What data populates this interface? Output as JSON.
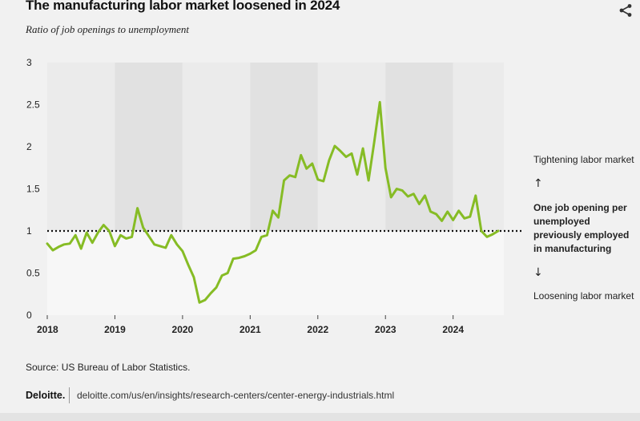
{
  "header": {
    "title": "The manufacturing labor market loosened in 2024",
    "subtitle": "Ratio of job openings to unemployment",
    "share_icon": "share-icon"
  },
  "annotations": {
    "tightening": "Tightening labor market",
    "up_arrow": "↑",
    "reference": "One job opening per unemployed previously employed in manufacturing",
    "down_arrow": "↓",
    "loosening": "Loosening labor market"
  },
  "footer": {
    "source": "Source: US Bureau of Labor Statistics.",
    "brand": "Deloitte.",
    "url": "deloitte.com/us/en/insights/research-centers/center-energy-industrials.html"
  },
  "colors": {
    "line": "#86bc25",
    "band_dark": "#e1e1e1",
    "band_light": "#ebebeb",
    "below_area": "#f7f7f7",
    "reference_line": "#111111"
  },
  "chart_data": {
    "type": "line",
    "title": "The manufacturing labor market loosened in 2024",
    "subtitle": "Ratio of job openings to unemployment",
    "xlabel": "",
    "ylabel": "",
    "ylim": [
      0,
      3
    ],
    "yticks": [
      0,
      0.5,
      1,
      1.5,
      2,
      2.5,
      3
    ],
    "ytick_labels": [
      "0",
      "0.5",
      "1",
      "1.5",
      "2",
      "2.5",
      "3"
    ],
    "xlim": [
      2018,
      2024.75
    ],
    "xticks": [
      2018,
      2019,
      2020,
      2021,
      2022,
      2023,
      2024
    ],
    "xtick_labels": [
      "2018",
      "2019",
      "2020",
      "2021",
      "2022",
      "2023",
      "2024"
    ],
    "reference_line": 1,
    "grid": false,
    "legend": "none",
    "series": [
      {
        "x": [
          2018.0,
          2018.083,
          2018.167,
          2018.25,
          2018.333,
          2018.417,
          2018.5,
          2018.583,
          2018.667,
          2018.75,
          2018.833,
          2018.917,
          2019.0,
          2019.083,
          2019.167,
          2019.25,
          2019.333,
          2019.417,
          2019.5,
          2019.583,
          2019.667,
          2019.75,
          2019.833,
          2019.917,
          2020.0,
          2020.083,
          2020.167,
          2020.25,
          2020.333,
          2020.417,
          2020.5,
          2020.583,
          2020.667,
          2020.75,
          2020.833,
          2020.917,
          2021.0,
          2021.083,
          2021.167,
          2021.25,
          2021.333,
          2021.417,
          2021.5,
          2021.583,
          2021.667,
          2021.75,
          2021.833,
          2021.917,
          2022.0,
          2022.083,
          2022.167,
          2022.25,
          2022.333,
          2022.417,
          2022.5,
          2022.583,
          2022.667,
          2022.75,
          2022.833,
          2022.917,
          2023.0,
          2023.083,
          2023.167,
          2023.25,
          2023.333,
          2023.417,
          2023.5,
          2023.583,
          2023.667,
          2023.75,
          2023.833,
          2023.917,
          2024.0,
          2024.083,
          2024.167,
          2024.25,
          2024.333,
          2024.417,
          2024.5,
          2024.583,
          2024.667
        ],
        "values": [
          0.85,
          0.77,
          0.81,
          0.84,
          0.85,
          0.95,
          0.79,
          0.98,
          0.86,
          0.98,
          1.07,
          1.0,
          0.82,
          0.95,
          0.91,
          0.93,
          1.27,
          1.04,
          0.94,
          0.84,
          0.82,
          0.8,
          0.95,
          0.84,
          0.76,
          0.6,
          0.45,
          0.15,
          0.18,
          0.26,
          0.33,
          0.47,
          0.5,
          0.67,
          0.68,
          0.7,
          0.73,
          0.77,
          0.93,
          0.95,
          1.24,
          1.16,
          1.6,
          1.66,
          1.64,
          1.9,
          1.74,
          1.8,
          1.61,
          1.59,
          1.84,
          2.01,
          1.95,
          1.88,
          1.92,
          1.67,
          1.98,
          1.6,
          2.05,
          2.53,
          1.75,
          1.4,
          1.5,
          1.48,
          1.41,
          1.44,
          1.32,
          1.42,
          1.23,
          1.2,
          1.12,
          1.23,
          1.13,
          1.24,
          1.15,
          1.17,
          1.42,
          1.0,
          0.93,
          0.96,
          1.0
        ]
      }
    ]
  }
}
